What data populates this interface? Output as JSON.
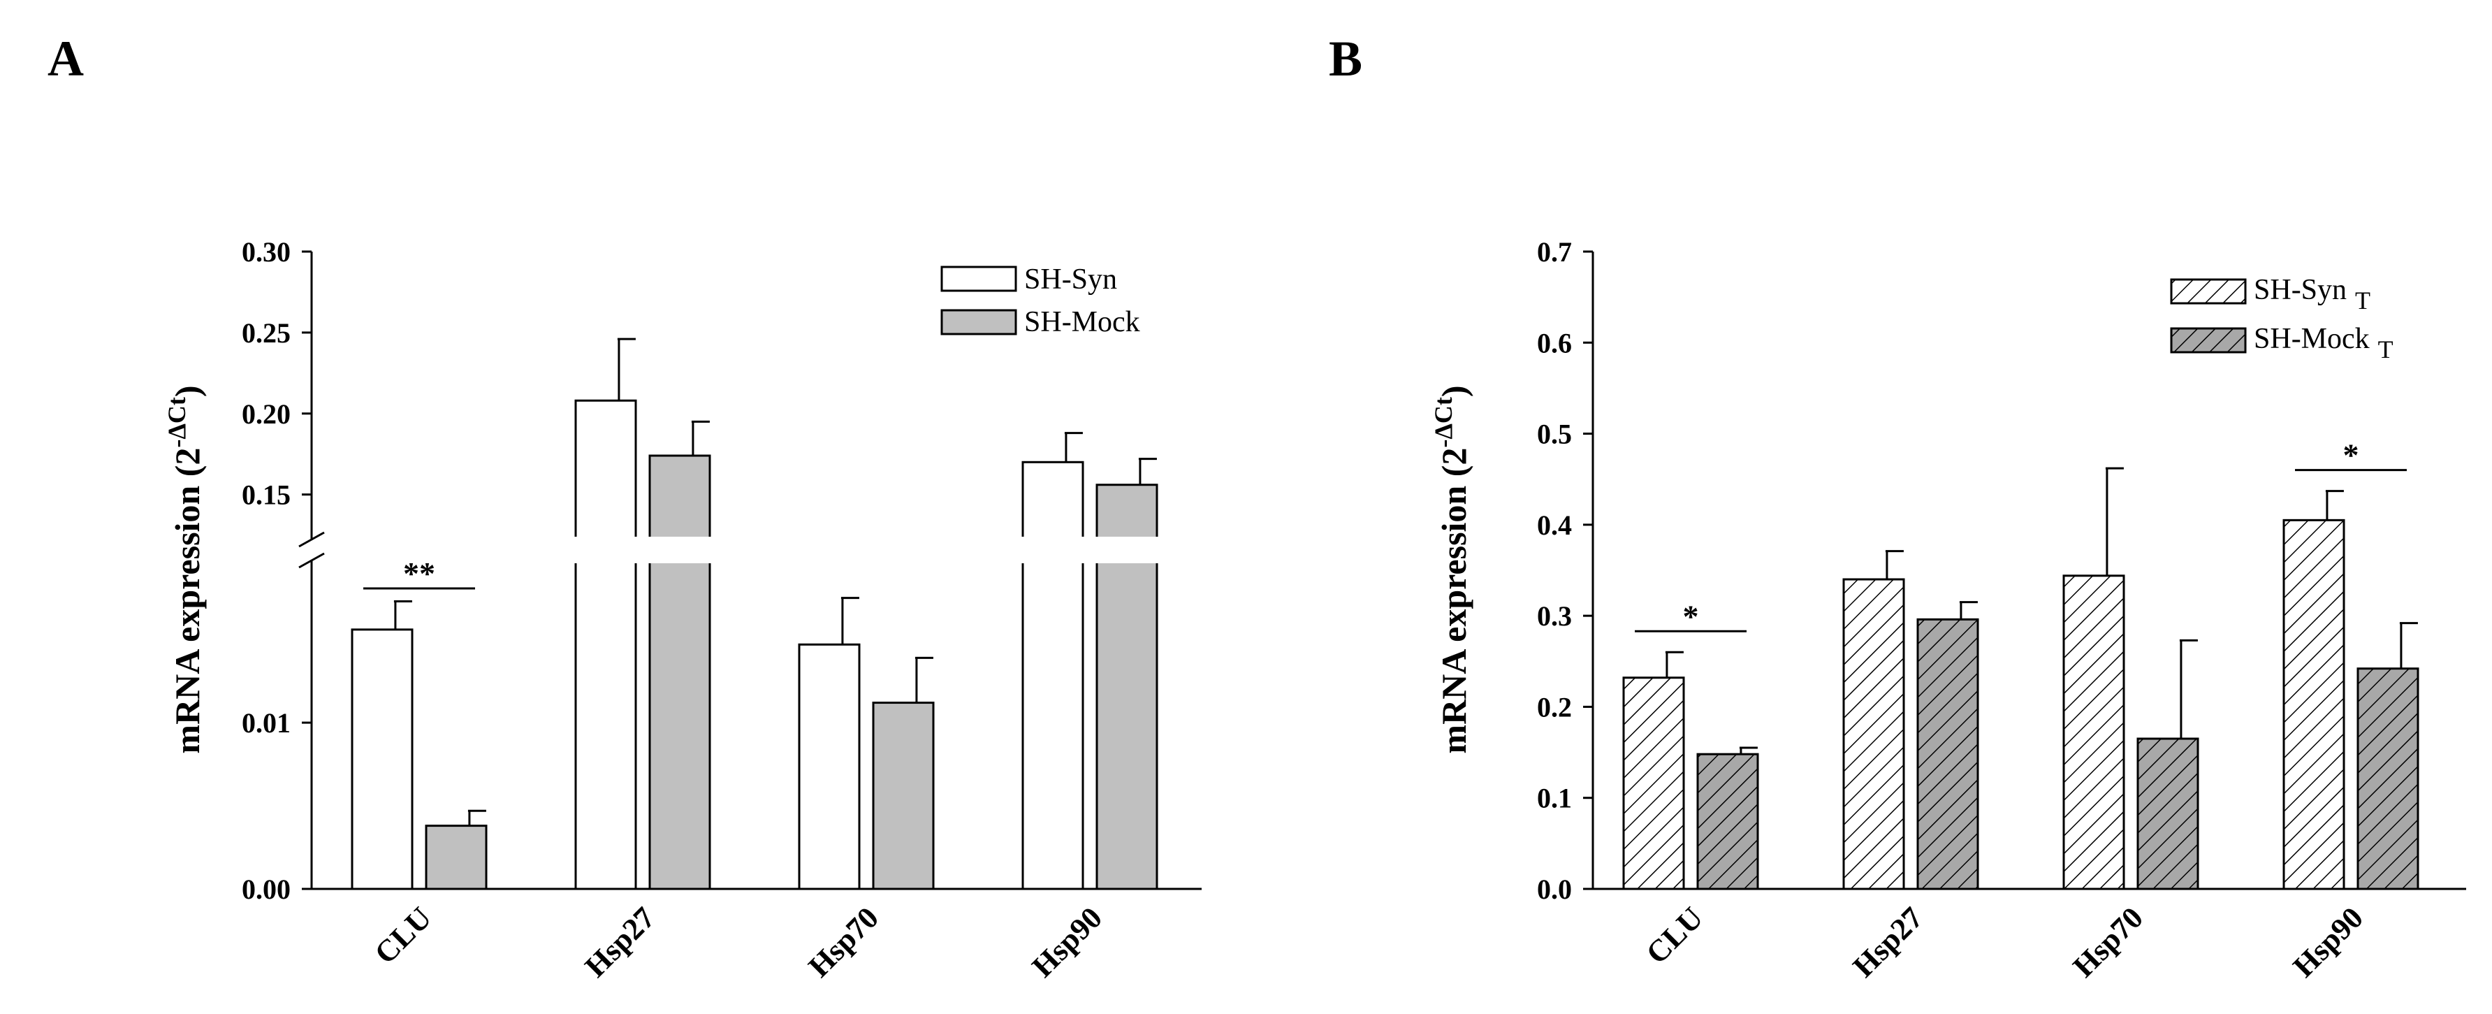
{
  "chart_data": [
    {
      "panel": "A",
      "type": "bar",
      "ylabel": "mRNA expression (2",
      "ylabel_sup": "-ΔCt",
      "ylabel_close": ")",
      "categories": [
        "CLU",
        "Hsp27",
        "Hsp70",
        "Hsp90"
      ],
      "broken_axis": true,
      "lower_segment": {
        "ylim": [
          0.0,
          0.019
        ],
        "ticks": [
          0.0,
          0.01
        ],
        "tick_labels": [
          "0.00",
          "0.01"
        ]
      },
      "upper_segment": {
        "ylim": [
          0.13,
          0.3
        ],
        "ticks": [
          0.15,
          0.2,
          0.25,
          0.3
        ],
        "tick_labels": [
          "0.15",
          "0.20",
          "0.25",
          "0.30"
        ]
      },
      "series": [
        {
          "name": "SH-Syn",
          "fill": "#ffffff",
          "values": [
            0.0156,
            0.208,
            0.0147,
            0.17
          ],
          "errors": [
            0.0017,
            0.038,
            0.0028,
            0.018
          ]
        },
        {
          "name": "SH-Mock",
          "fill": "#c0c0c0",
          "values": [
            0.0038,
            0.174,
            0.0112,
            0.156
          ],
          "errors": [
            0.0009,
            0.021,
            0.0027,
            0.016
          ]
        }
      ],
      "significance": [
        {
          "category": "CLU",
          "label": "**"
        }
      ],
      "legend_position": "top-right"
    },
    {
      "panel": "B",
      "type": "bar",
      "ylabel": "mRNA expression (2",
      "ylabel_sup": "-ΔCt",
      "ylabel_close": ")",
      "categories": [
        "CLU",
        "Hsp27",
        "Hsp70",
        "Hsp90"
      ],
      "ylim": [
        0.0,
        0.7
      ],
      "ticks": [
        0.0,
        0.1,
        0.2,
        0.3,
        0.4,
        0.5,
        0.6,
        0.7
      ],
      "tick_labels": [
        "0.0",
        "0.1",
        "0.2",
        "0.3",
        "0.4",
        "0.5",
        "0.6",
        "0.7"
      ],
      "series": [
        {
          "name": "SH-Syn",
          "name_sub": "T",
          "fill": "#ffffff",
          "hatch": "diagonal",
          "values": [
            0.232,
            0.34,
            0.344,
            0.405
          ],
          "errors": [
            0.028,
            0.031,
            0.118,
            0.032
          ]
        },
        {
          "name": "SH-Mock",
          "name_sub": "T",
          "fill": "#a8a8a8",
          "hatch": "diagonal",
          "values": [
            0.148,
            0.296,
            0.165,
            0.242
          ],
          "errors": [
            0.007,
            0.019,
            0.108,
            0.05
          ]
        }
      ],
      "significance": [
        {
          "category": "CLU",
          "label": "*"
        },
        {
          "category": "Hsp90",
          "label": "*"
        }
      ],
      "legend_position": "top-right"
    }
  ]
}
